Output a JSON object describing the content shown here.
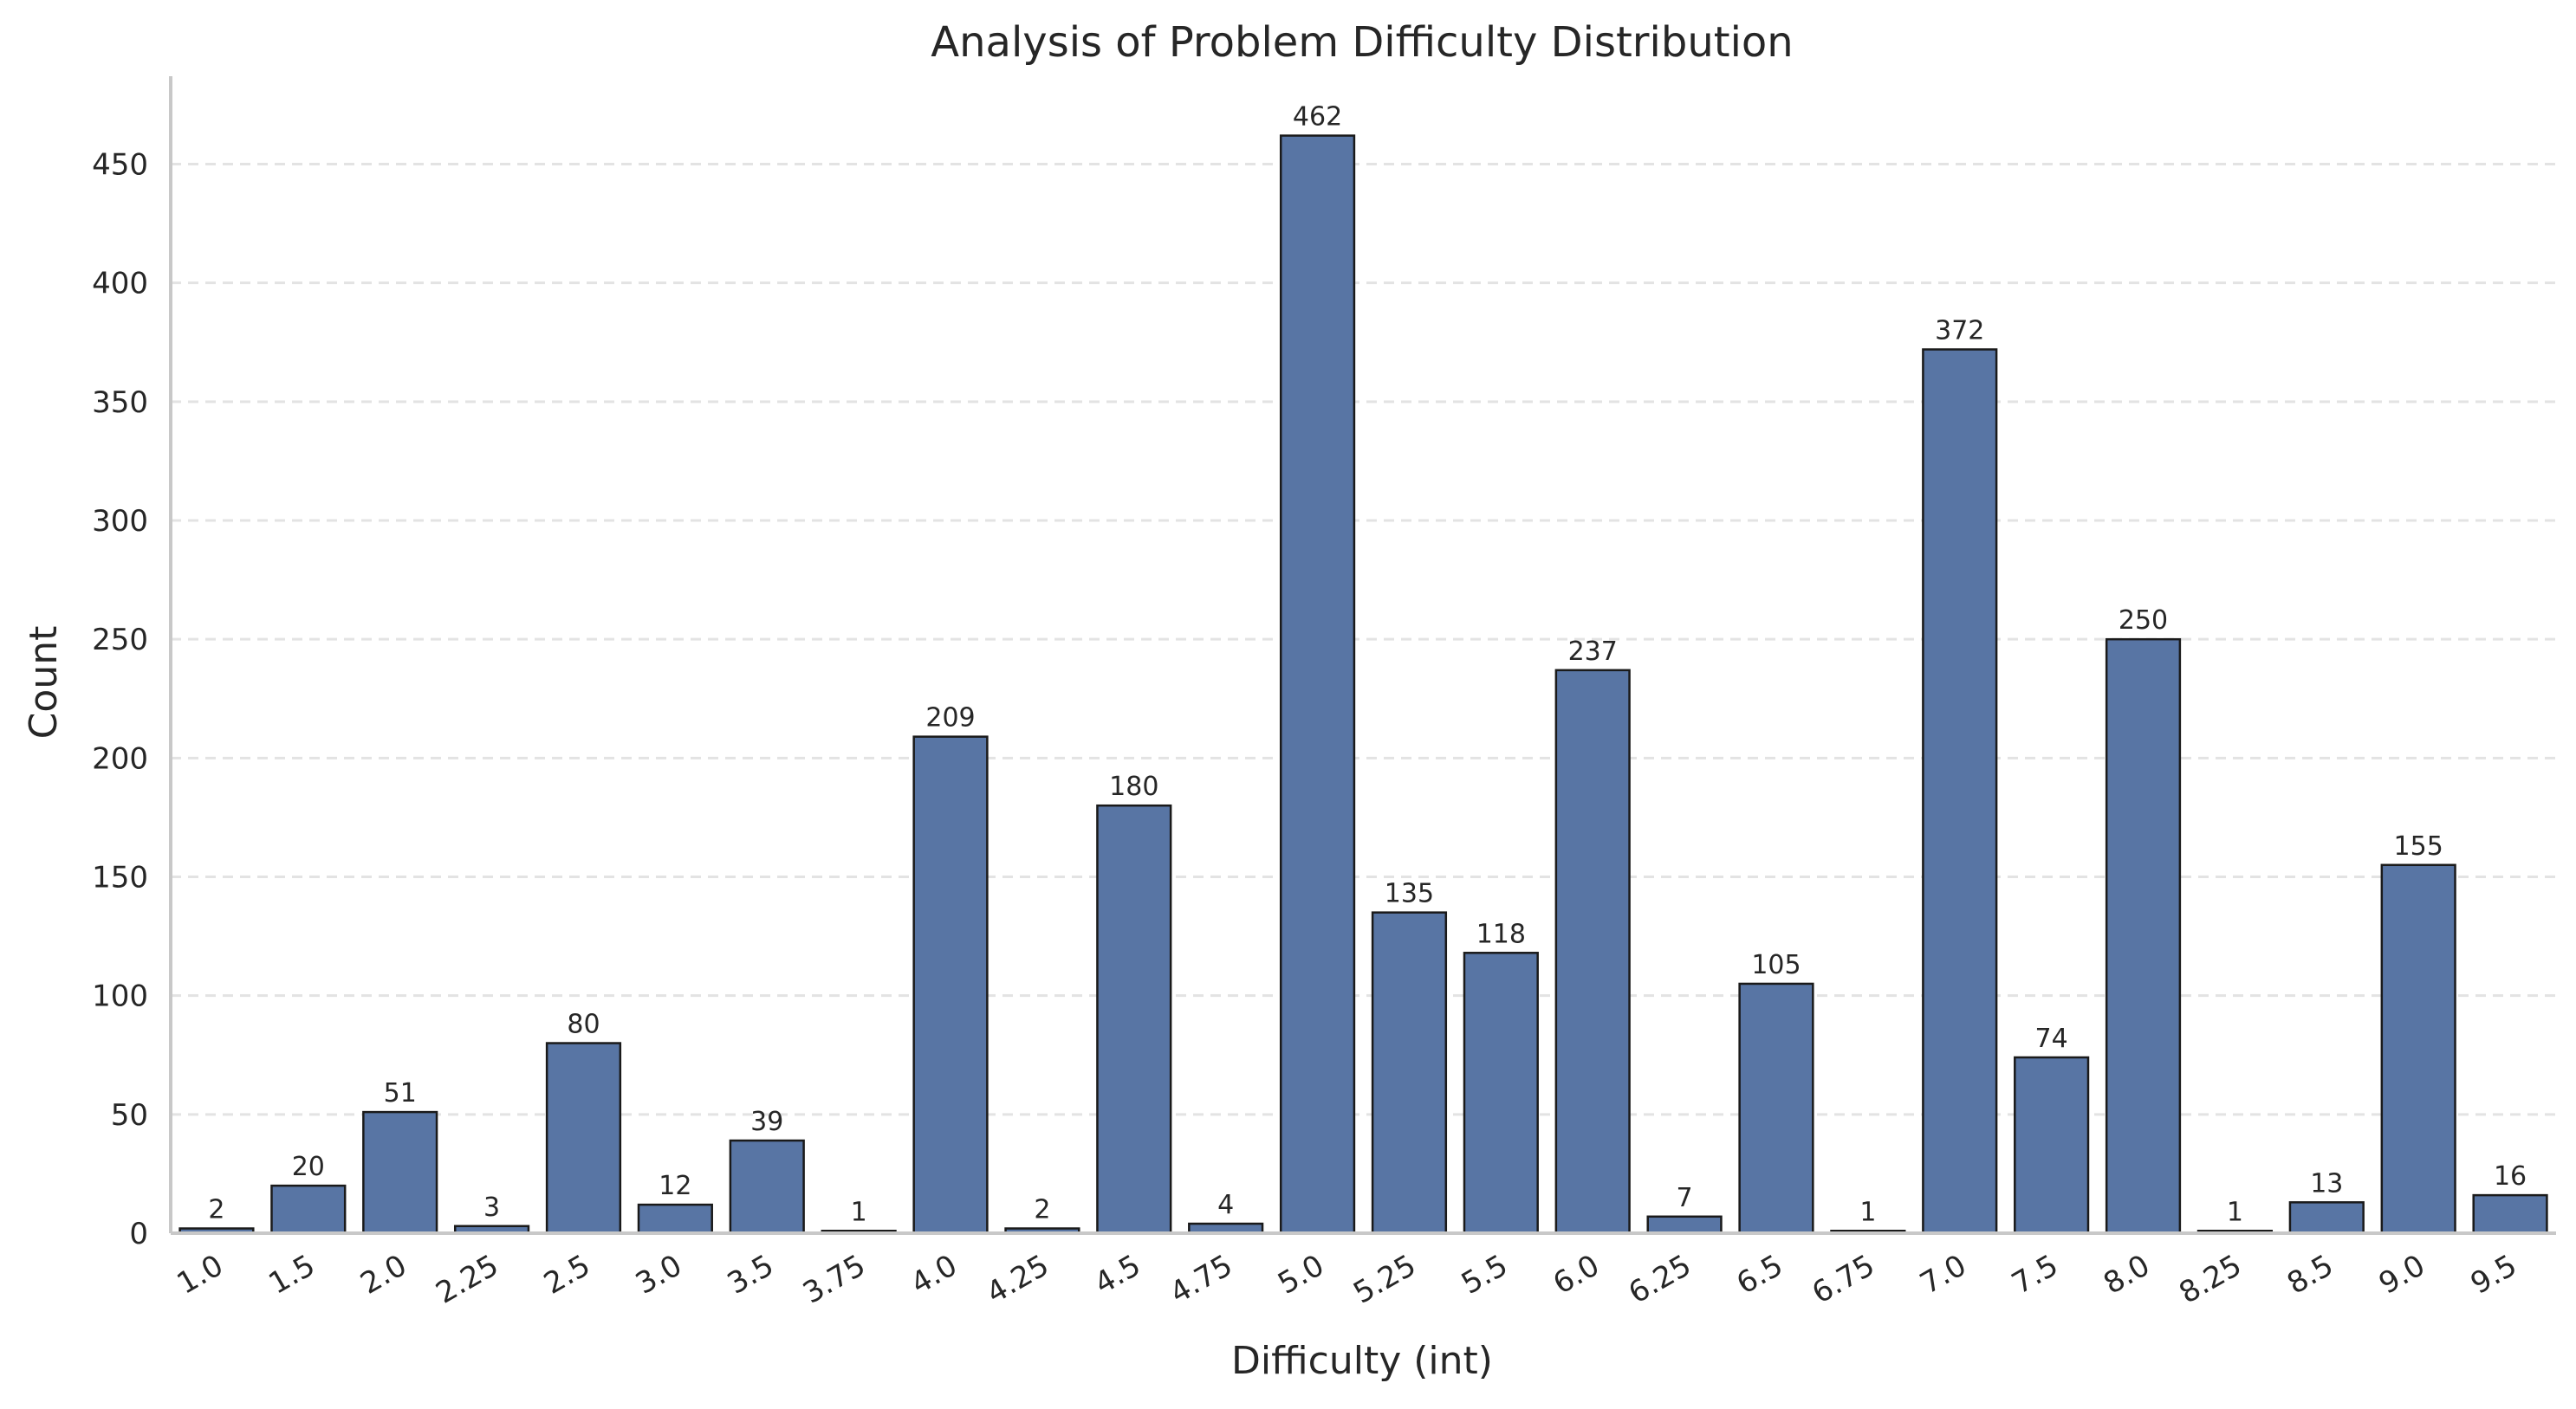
{
  "chart_data": {
    "type": "bar",
    "title": "Analysis of Problem Difficulty Distribution",
    "xlabel": "Difficulty (int)",
    "ylabel": "Count",
    "categories": [
      "1.0",
      "1.5",
      "2.0",
      "2.25",
      "2.5",
      "3.0",
      "3.5",
      "3.75",
      "4.0",
      "4.25",
      "4.5",
      "4.75",
      "5.0",
      "5.25",
      "5.5",
      "6.0",
      "6.25",
      "6.5",
      "6.75",
      "7.0",
      "7.5",
      "8.0",
      "8.25",
      "8.5",
      "9.0",
      "9.5"
    ],
    "values": [
      2,
      20,
      51,
      3,
      80,
      12,
      39,
      1,
      209,
      2,
      180,
      4,
      462,
      135,
      118,
      237,
      7,
      105,
      1,
      372,
      74,
      250,
      1,
      13,
      155,
      16
    ],
    "data_labels": [
      "2",
      "20",
      "51",
      "3",
      "80",
      "12",
      "39",
      "1",
      "209",
      "2",
      "180",
      "4",
      "462",
      "135",
      "118",
      "237",
      "7",
      "105",
      "1",
      "372",
      "74",
      "250",
      "1",
      "13",
      "155",
      "16"
    ],
    "yticks": [
      0,
      50,
      100,
      150,
      200,
      250,
      300,
      350,
      400,
      450
    ],
    "ytick_labels": [
      "0",
      "50",
      "100",
      "150",
      "200",
      "250",
      "300",
      "350",
      "400",
      "450"
    ],
    "ylim": [
      0,
      487
    ],
    "grid": "horizontal dashed",
    "legend": "none",
    "colors": {
      "bar": "#5875a4",
      "bar_edge": "#1a1a1a",
      "grid": "#e3e3e3",
      "axis": "#c8c8c8",
      "text": "#262626"
    }
  }
}
